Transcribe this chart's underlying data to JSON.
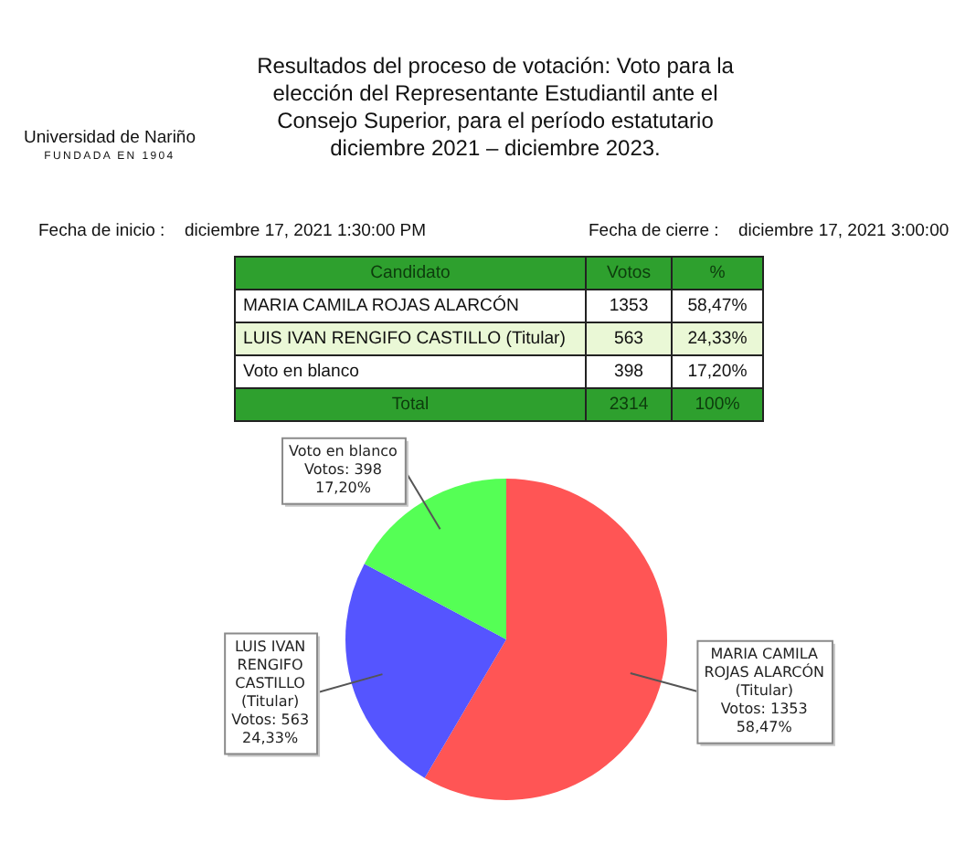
{
  "chart_data": {
    "type": "pie",
    "title": "Resultados del proceso de votación: Voto para la elección del Representante Estudiantil ante el Consejo Superior, para el período estatutario diciembre 2021 – diciembre 2023.",
    "categories": [
      "MARIA CAMILA ROJAS ALARCÓN (Titular)",
      "LUIS IVAN RENGIFO CASTILLO (Titular)",
      "Voto en blanco"
    ],
    "values": [
      1353,
      563,
      398
    ],
    "colors": [
      "#ff5555",
      "#5555ff",
      "#55ff55"
    ],
    "value_labels": [
      "Votos: 1353\n58,47%",
      "Votos: 563\n24,33%",
      "Votos: 398\n17,20%"
    ],
    "annotations": [
      "Universidad de Nariño",
      "FUNDADA EN 1904",
      "Fecha de inicio :",
      "diciembre 17, 2021 1:30:00 PM",
      "Fecha de cierre :",
      "diciembre 17, 2021 3:00:00",
      "Candidato",
      "Votos",
      "%",
      "MARIA CAMILA ROJAS ALARCÓN",
      "1353",
      "58,47%",
      "LUIS IVAN RENGIFO CASTILLO (Titular)",
      "563",
      "24,33%",
      "Voto en blanco",
      "398",
      "17,20%",
      "Total",
      "2314",
      "100%"
    ]
  }
}
